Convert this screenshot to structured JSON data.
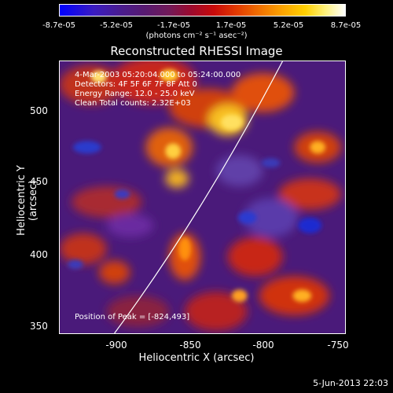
{
  "colorbar": {
    "ticks": [
      "-8.7e-05",
      "-5.2e-05",
      "-1.7e-05",
      "1.7e-05",
      "5.2e-05",
      "8.7e-05"
    ],
    "units": "(photons cm⁻² s⁻¹ asec⁻²)"
  },
  "title": "Reconstructed RHESSI Image",
  "info": {
    "time_range": "4-Mar-2003 05:20:04.000 to 05:24:00.000",
    "detectors": "Detectors: 4F 5F 6F 7F 8F  Att 0",
    "energy_range": "Energy Range: 12.0 - 25.0 keV",
    "clean_counts": "Clean     Total counts: 2.32E+03",
    "peak": "Position of Peak = [-824,493]"
  },
  "axes": {
    "xlabel": "Heliocentric X (arcsec)",
    "ylabel": "Heliocentric Y (arcsec)",
    "xticks": [
      "-900",
      "-850",
      "-800",
      "-750"
    ],
    "yticks": [
      "500",
      "450",
      "400",
      "350"
    ],
    "xlim": [
      -945,
      -750
    ],
    "ylim": [
      345,
      535
    ]
  },
  "timestamp": "5-Jun-2013 22:03"
}
